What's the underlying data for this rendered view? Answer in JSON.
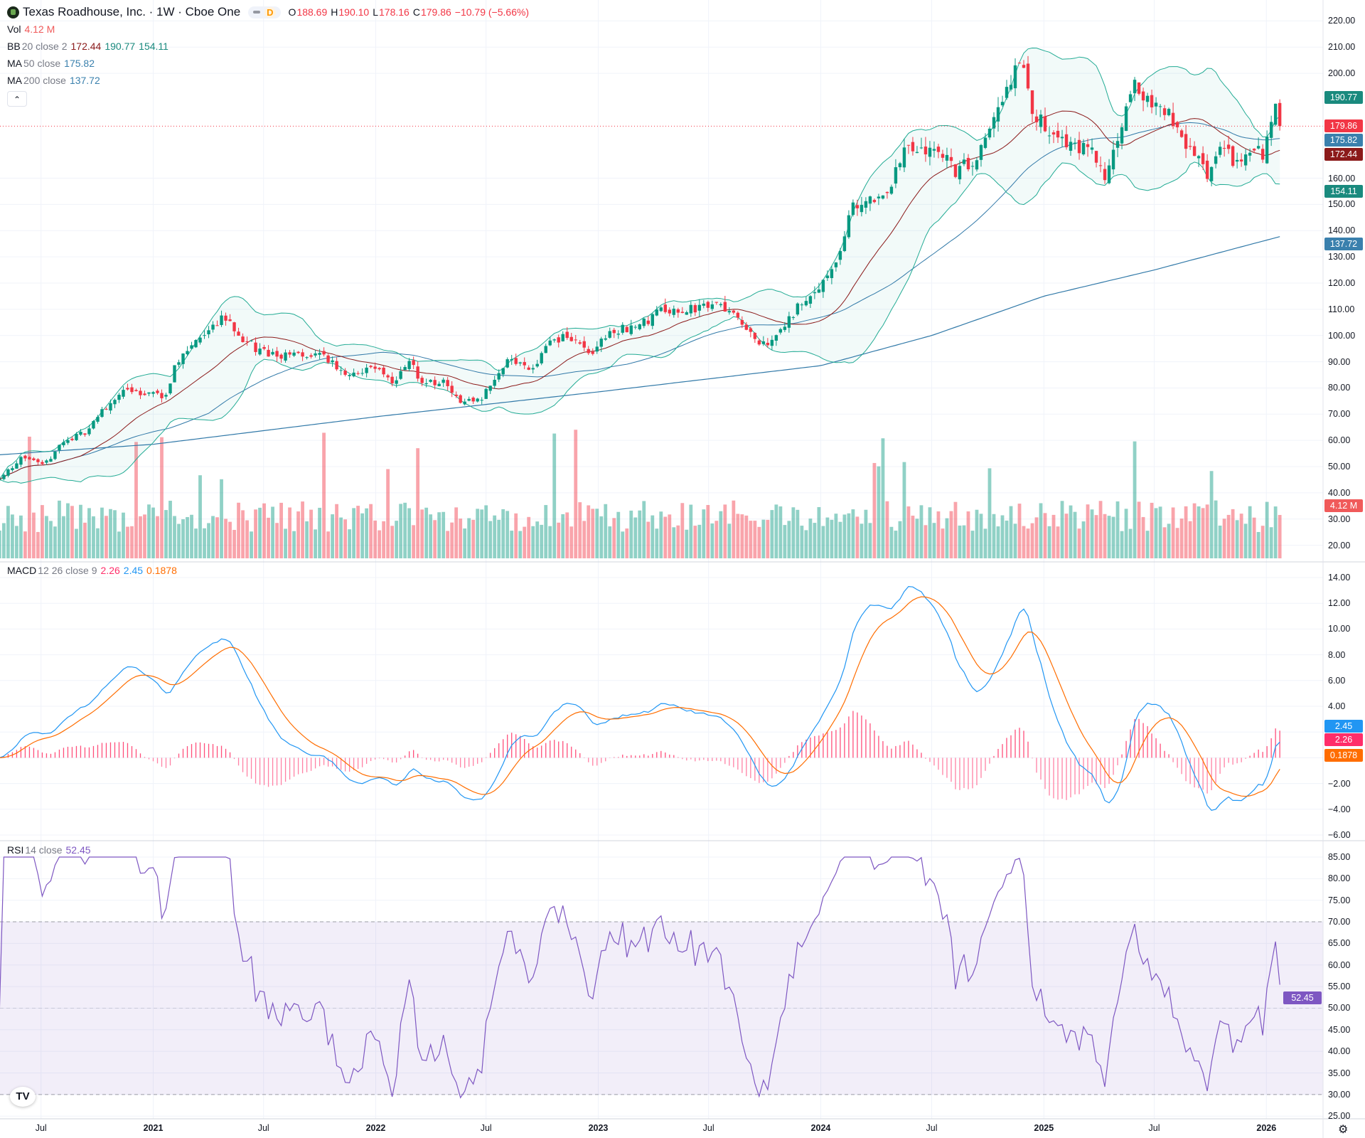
{
  "header": {
    "symbol_name": "Texas Roadhouse, Inc. · 1W · Cboe One",
    "badge": "D",
    "ohlc": {
      "o_label": "O",
      "o": "188.69",
      "h_label": "H",
      "h": "190.10",
      "l_label": "L",
      "l": "178.16",
      "c_label": "C",
      "c": "179.86",
      "change": "−10.79 (−5.66%)"
    }
  },
  "legends": {
    "vol": {
      "name": "Vol",
      "value": "4.12 M"
    },
    "bb": {
      "name": "BB",
      "params": "20 close 2",
      "basis": "172.44",
      "upper": "190.77",
      "lower": "154.11"
    },
    "ma50": {
      "name": "MA",
      "params": "50 close",
      "value": "175.82"
    },
    "ma200": {
      "name": "MA",
      "params": "200 close",
      "value": "137.72"
    },
    "macd": {
      "name": "MACD",
      "params": "12 26 close 9",
      "hist": "2.26",
      "macd": "2.45",
      "signal": "0.1878"
    },
    "rsi": {
      "name": "RSI",
      "params": "14 close",
      "value": "52.45"
    }
  },
  "colors": {
    "up": "#089981",
    "down": "#f23645",
    "bb": "#22ab94",
    "bb_basis": "#8b1a1a",
    "ma": "#3179a8",
    "macd": "#2196f3",
    "signal": "#ff6d00",
    "hist": "#ff4f7b",
    "rsi": "#7e57c2"
  },
  "icons": {
    "collapse": "chevron-up-icon",
    "logo": "tradingview-logo",
    "settings": "gear-icon"
  },
  "chart_data": {
    "type": "candlestick",
    "interval": "1W",
    "first_week": "2020-04-24",
    "last_week": "2026-01-23",
    "last_bar": {
      "open": 188.69,
      "high": 190.1,
      "low": 178.16,
      "close": 179.86
    },
    "close_path": [
      [
        "2020-04-24",
        46
      ],
      [
        "2020-05-01",
        47
      ],
      [
        "2020-05-30",
        53.5
      ],
      [
        "2020-07-05",
        50
      ],
      [
        "2020-08-01",
        58.5
      ],
      [
        "2020-09-13",
        63.5
      ],
      [
        "2020-10-12",
        72
      ],
      [
        "2020-11-10",
        78.5
      ],
      [
        "2020-12-08",
        78.5
      ],
      [
        "2021-01-21",
        77
      ],
      [
        "2021-02-04",
        87
      ],
      [
        "2021-03-05",
        97
      ],
      [
        "2021-04-01",
        100
      ],
      [
        "2021-04-27",
        108
      ],
      [
        "2021-05-22",
        100
      ],
      [
        "2021-06-20",
        95
      ],
      [
        "2021-07-25",
        92
      ],
      [
        "2021-08-30",
        92
      ],
      [
        "2021-10-04",
        92
      ],
      [
        "2021-11-17",
        85
      ],
      [
        "2021-12-30",
        88
      ],
      [
        "2022-01-28",
        82
      ],
      [
        "2022-02-26",
        90
      ],
      [
        "2022-03-18",
        82
      ],
      [
        "2022-04-23",
        82
      ],
      [
        "2022-05-22",
        75
      ],
      [
        "2022-06-20",
        75
      ],
      [
        "2022-07-10",
        82
      ],
      [
        "2022-08-08",
        92
      ],
      [
        "2022-09-13",
        87
      ],
      [
        "2022-10-12",
        97
      ],
      [
        "2022-11-10",
        100
      ],
      [
        "2022-12-22",
        93.5
      ],
      [
        "2023-01-21",
        102
      ],
      [
        "2023-03-05",
        103
      ],
      [
        "2023-04-17",
        110
      ],
      [
        "2023-05-30",
        110
      ],
      [
        "2023-07-18",
        113
      ],
      [
        "2023-08-23",
        105
      ],
      [
        "2023-10-04",
        95
      ],
      [
        "2023-11-02",
        103
      ],
      [
        "2023-12-01",
        113
      ],
      [
        "2024-01-06",
        120
      ],
      [
        "2024-02-04",
        133
      ],
      [
        "2024-02-18",
        148
      ],
      [
        "2024-03-26",
        151.5
      ],
      [
        "2024-04-23",
        156.5
      ],
      [
        "2024-05-08",
        168
      ],
      [
        "2024-06-06",
        171.5
      ],
      [
        "2024-07-18",
        170
      ],
      [
        "2024-08-08",
        163
      ],
      [
        "2024-09-13",
        168
      ],
      [
        "2024-10-12",
        181
      ],
      [
        "2024-11-02",
        195
      ],
      [
        "2024-11-24",
        203
      ],
      [
        "2024-12-16",
        185
      ],
      [
        "2025-01-22",
        176.5
      ],
      [
        "2025-02-21",
        171.5
      ],
      [
        "2025-03-22",
        173
      ],
      [
        "2025-04-10",
        158
      ],
      [
        "2025-05-01",
        173
      ],
      [
        "2025-05-30",
        195
      ],
      [
        "2025-06-28",
        188
      ],
      [
        "2025-07-27",
        185
      ],
      [
        "2025-08-11",
        175
      ],
      [
        "2025-09-16",
        165
      ],
      [
        "2025-09-29",
        161.5
      ],
      [
        "2025-10-20",
        175
      ],
      [
        "2025-11-10",
        165
      ],
      [
        "2025-12-02",
        170
      ],
      [
        "2025-12-30",
        170
      ],
      [
        "2026-01-15",
        191.5
      ],
      [
        "2026-01-23",
        179.86
      ]
    ],
    "ma200_path": [
      [
        "2020-04-24",
        54.5
      ],
      [
        "2021-01-01",
        58.5
      ],
      [
        "2022-01-01",
        69
      ],
      [
        "2023-01-01",
        78.5
      ],
      [
        "2024-01-01",
        88.5
      ],
      [
        "2024-07-01",
        100
      ],
      [
        "2025-01-01",
        115
      ],
      [
        "2025-07-01",
        125
      ],
      [
        "2026-01-23",
        137.72
      ]
    ],
    "price_axis": {
      "ticks": [
        220,
        210,
        200,
        160,
        150,
        140,
        130,
        120,
        110,
        100,
        90,
        80,
        70,
        60,
        50,
        40,
        30,
        20
      ],
      "range": [
        20,
        220
      ]
    },
    "macd_axis": {
      "ticks": [
        "14.00",
        "12.00",
        "10.00",
        "8.00",
        "6.00",
        "4.00",
        "−2.00",
        "−4.00",
        "−6.00"
      ],
      "values": [
        14,
        12,
        10,
        8,
        6,
        4,
        -2,
        -4,
        -6
      ],
      "range": [
        -6,
        14
      ]
    },
    "rsi_axis": {
      "ticks": [
        "85.00",
        "80.00",
        "75.00",
        "70.00",
        "65.00",
        "60.00",
        "55.00",
        "50.00",
        "45.00",
        "40.00",
        "35.00",
        "30.00",
        "25.00"
      ],
      "values": [
        85,
        80,
        75,
        70,
        65,
        60,
        55,
        50,
        45,
        40,
        35,
        30,
        25
      ],
      "range": [
        25,
        85
      ],
      "bands": [
        30,
        70
      ]
    },
    "time_axis": [
      {
        "label": "Jul",
        "date": "2020-07-01"
      },
      {
        "label": "2021",
        "date": "2021-01-01"
      },
      {
        "label": "Jul",
        "date": "2021-07-01"
      },
      {
        "label": "2022",
        "date": "2022-01-01"
      },
      {
        "label": "Jul",
        "date": "2022-07-01"
      },
      {
        "label": "2023",
        "date": "2023-01-01"
      },
      {
        "label": "Jul",
        "date": "2023-07-01"
      },
      {
        "label": "2024",
        "date": "2024-01-01"
      },
      {
        "label": "Jul",
        "date": "2024-07-01"
      },
      {
        "label": "2025",
        "date": "2025-01-01"
      },
      {
        "label": "Jul",
        "date": "2025-07-01"
      },
      {
        "label": "2026",
        "date": "2026-01-01"
      }
    ],
    "price_labels": [
      {
        "text": "190.77",
        "value": 190.77,
        "color": "#1a8a7e"
      },
      {
        "text": "179.86",
        "value": 179.86,
        "color": "#f23645"
      },
      {
        "text": "175.82",
        "value": 175.82,
        "color": "#3a80ad"
      },
      {
        "text": "172.44",
        "value": 172.44,
        "color": "#8b1a1a"
      },
      {
        "text": "154.11",
        "value": 154.11,
        "color": "#1a8a7e"
      },
      {
        "text": "137.72",
        "value": 137.72,
        "color": "#3a80ad"
      }
    ],
    "volume_label": {
      "text": "4.12 M",
      "value": 4.12,
      "color": "#f05a5a"
    },
    "macd_labels": [
      {
        "text": "2.45",
        "value": 2.45,
        "color": "#2196f3"
      },
      {
        "text": "2.26",
        "value": 2.26,
        "color": "#ff2d6a"
      },
      {
        "text": "0.1878",
        "value": 0.1878,
        "color": "#ff6d00"
      }
    ],
    "rsi_label": {
      "text": "52.45",
      "value": 52.45,
      "color": "#7e57c2"
    }
  }
}
